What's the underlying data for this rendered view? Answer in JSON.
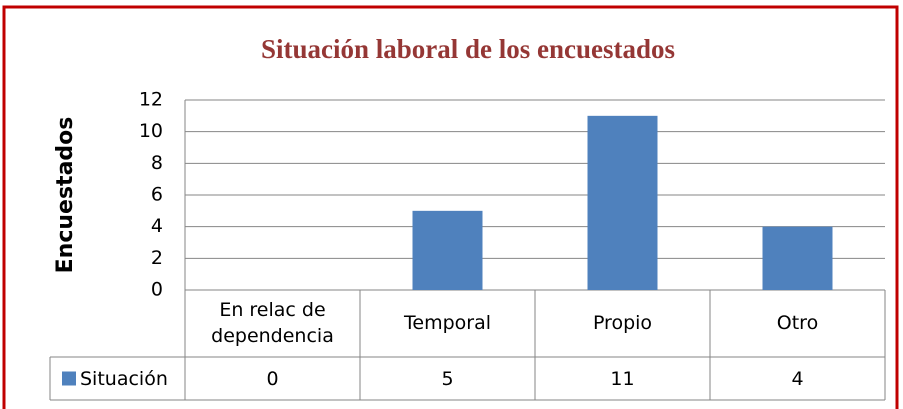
{
  "chart_data": {
    "type": "bar",
    "title": "Situación laboral de los encuestados",
    "y_label": "Encuestados",
    "categories": [
      "En relac de dependencia",
      "Temporal",
      "Propio",
      "Otro"
    ],
    "series": [
      {
        "name": "Situación",
        "color": "#4f81bd",
        "values": [
          0,
          5,
          11,
          4
        ]
      }
    ],
    "ylim": [
      0,
      12
    ],
    "yticks": [
      0,
      2,
      4,
      6,
      8,
      10,
      12
    ],
    "grid": true
  }
}
